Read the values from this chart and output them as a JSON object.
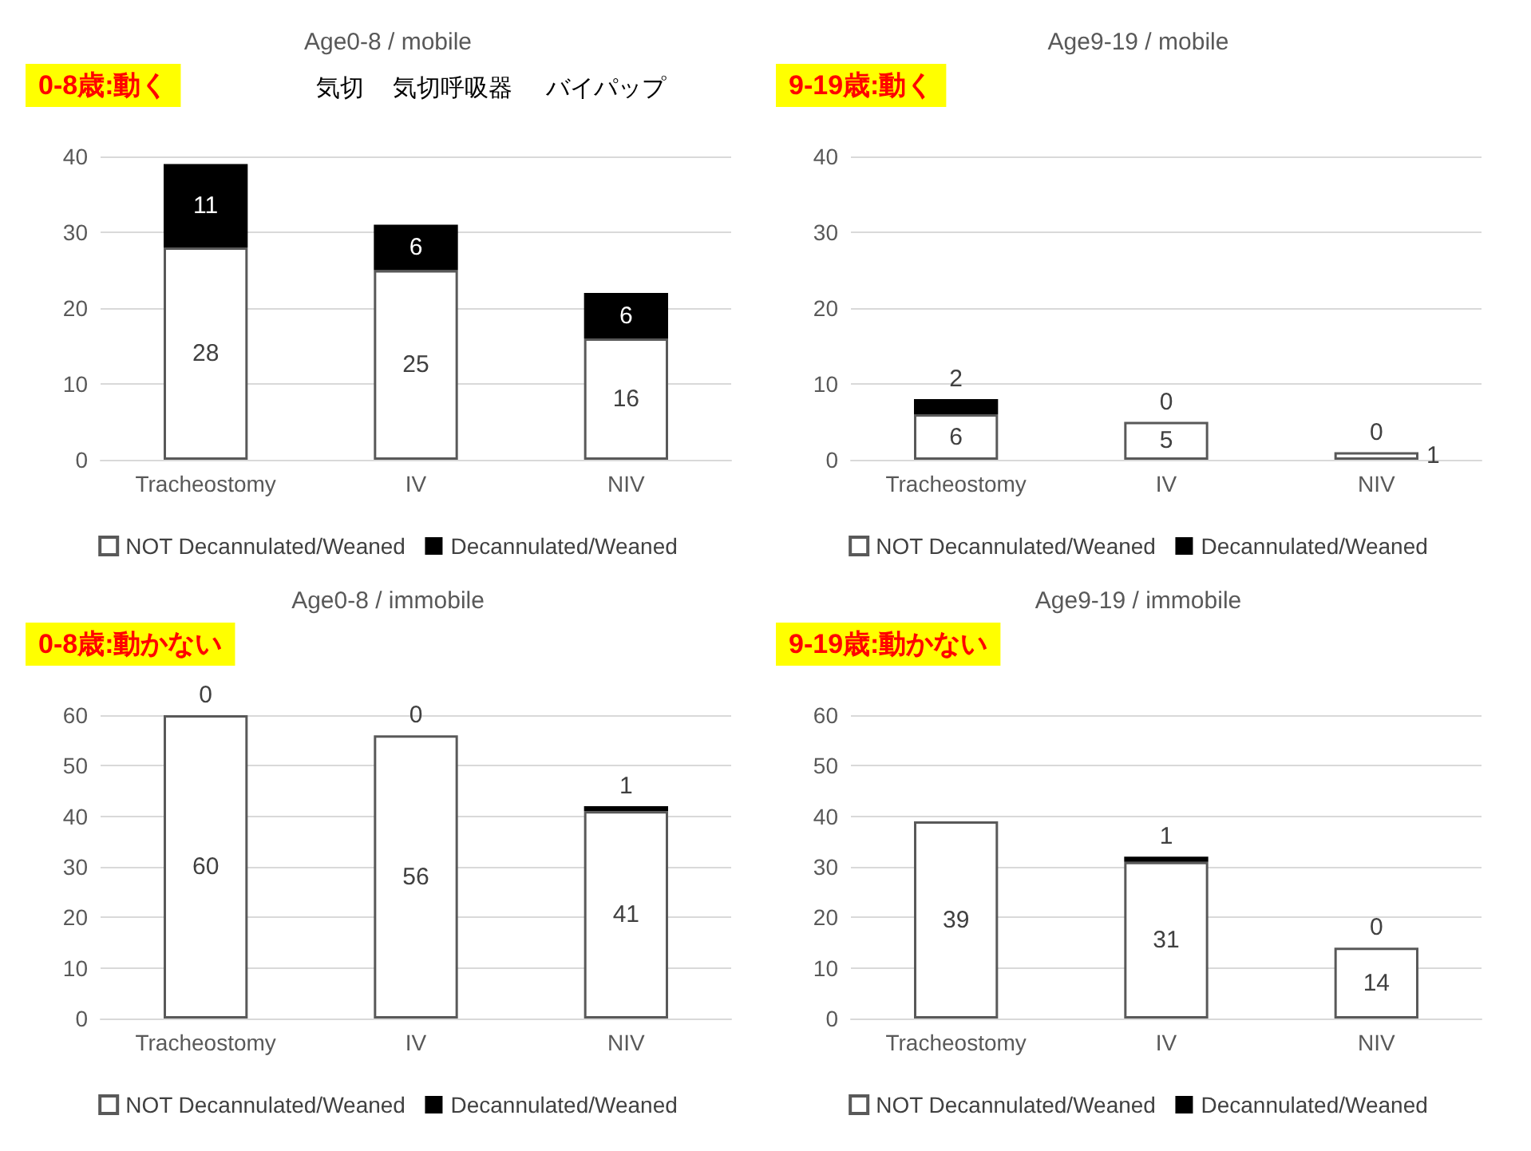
{
  "chart_data": [
    {
      "type": "bar",
      "stacked": true,
      "title": "Age0-8 / mobile",
      "categories": [
        "Tracheostomy",
        "IV",
        "NIV"
      ],
      "series": [
        {
          "name": "NOT Decannulated/Weaned",
          "color": "#ffffff",
          "values": [
            28,
            25,
            16
          ]
        },
        {
          "name": "Decannulated/Weaned",
          "color": "#000000",
          "values": [
            11,
            6,
            6
          ]
        }
      ],
      "ylim": [
        0,
        40
      ],
      "yticks": [
        0,
        10,
        20,
        30,
        40
      ],
      "grid": "y",
      "legend": "bottom",
      "data_labels": true,
      "annotations": [
        "0-8歳:動く",
        "気切",
        "気切呼吸器",
        "バイパップ"
      ]
    },
    {
      "type": "bar",
      "stacked": true,
      "title": "Age9-19 / mobile",
      "categories": [
        "Tracheostomy",
        "IV",
        "NIV"
      ],
      "series": [
        {
          "name": "NOT Decannulated/Weaned",
          "color": "#ffffff",
          "values": [
            6,
            5,
            1
          ]
        },
        {
          "name": "Decannulated/Weaned",
          "color": "#000000",
          "values": [
            2,
            0,
            0
          ]
        }
      ],
      "ylim": [
        0,
        40
      ],
      "yticks": [
        0,
        10,
        20,
        30,
        40
      ],
      "grid": "y",
      "legend": "bottom",
      "data_labels": true,
      "annotations": [
        "9-19歳:動く"
      ]
    },
    {
      "type": "bar",
      "stacked": true,
      "title": "Age0-8 / immobile",
      "categories": [
        "Tracheostomy",
        "IV",
        "NIV"
      ],
      "series": [
        {
          "name": "NOT Decannulated/Weaned",
          "color": "#ffffff",
          "values": [
            60,
            56,
            41
          ]
        },
        {
          "name": "Decannulated/Weaned",
          "color": "#000000",
          "values": [
            0,
            0,
            1
          ]
        }
      ],
      "ylim": [
        0,
        60
      ],
      "yticks": [
        0,
        10,
        20,
        30,
        40,
        50,
        60
      ],
      "grid": "y",
      "legend": "bottom",
      "data_labels": true,
      "annotations": [
        "0-8歳:動かない"
      ]
    },
    {
      "type": "bar",
      "stacked": true,
      "title": "Age9-19 / immobile",
      "categories": [
        "Tracheostomy",
        "IV",
        "NIV"
      ],
      "series": [
        {
          "name": "NOT Decannulated/Weaned",
          "color": "#ffffff",
          "values": [
            39,
            31,
            14
          ]
        },
        {
          "name": "Decannulated/Weaned",
          "color": "#000000",
          "values": [
            null,
            1,
            0
          ]
        }
      ],
      "ylim": [
        0,
        60
      ],
      "yticks": [
        0,
        10,
        20,
        30,
        40,
        50,
        60
      ],
      "grid": "y",
      "legend": "bottom",
      "data_labels": true,
      "annotations": [
        "9-19歳:動かない"
      ]
    }
  ]
}
